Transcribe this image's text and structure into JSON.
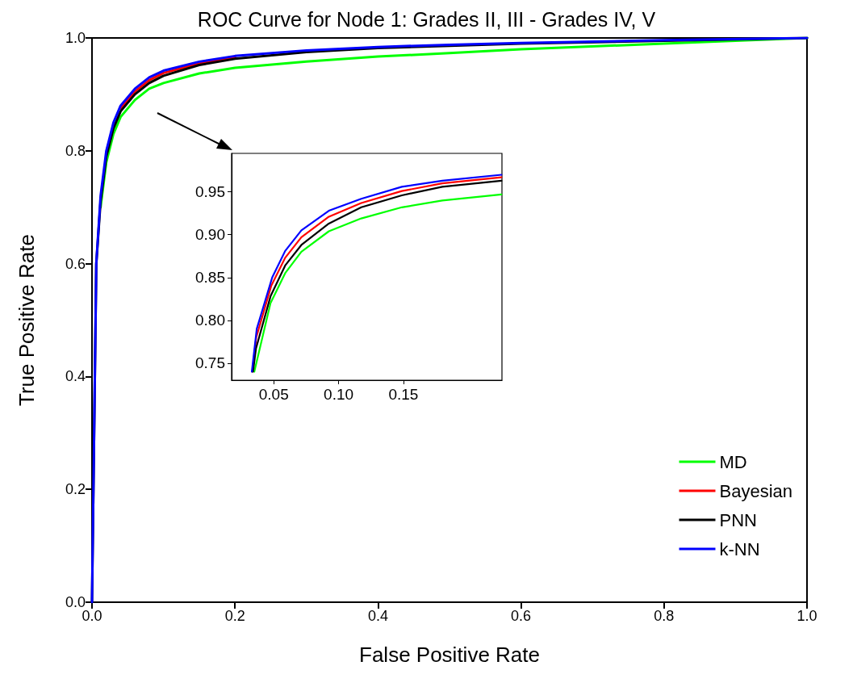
{
  "chart_data": [
    {
      "type": "line",
      "title": "ROC Curve for Node 1: Grades II, III - Grades IV, V",
      "xlabel": "False Positive Rate",
      "ylabel": "True Positive Rate",
      "xlim": [
        0,
        1
      ],
      "ylim": [
        0,
        1
      ],
      "xticks": [
        {
          "value": 0,
          "label": "0.0"
        },
        0.2,
        0.4,
        0.6,
        0.8,
        {
          "value": 1,
          "label": "1.0"
        }
      ],
      "yticks": [
        {
          "value": 0,
          "label": "0.0"
        },
        0.2,
        0.4,
        0.6,
        0.8,
        {
          "value": 1,
          "label": "1.0"
        }
      ],
      "grid": false,
      "legend": "bottom right",
      "marker": "none",
      "line_style": "solid",
      "series": [
        {
          "name": "MD",
          "color": "#00ff00",
          "x": [
            0.012,
            0.02,
            0.03,
            0.04,
            0.06,
            0.08,
            0.1,
            0.15,
            0.2,
            0.3,
            0.4,
            0.5,
            0.6,
            0.8,
            1
          ],
          "values": [
            0.7,
            0.78,
            0.83,
            0.86,
            0.89,
            0.91,
            0.92,
            0.937,
            0.947,
            0.958,
            0.967,
            0.973,
            0.98,
            0.99,
            1
          ]
        },
        {
          "name": "Bayesian",
          "color": "#ff0000",
          "x": [
            0.04,
            0.06,
            0.08,
            0.1,
            0.15,
            0.2
          ],
          "values": [
            0.875,
            0.905,
            0.925,
            0.938,
            0.955,
            0.966
          ]
        },
        {
          "name": "PNN",
          "color": "#000000",
          "x": [
            0,
            0.003,
            0.006,
            0.012,
            0.02,
            0.03,
            0.04,
            0.06,
            0.08,
            0.1,
            0.15,
            0.2,
            0.3,
            0.4,
            0.5,
            0.6,
            0.8,
            1
          ],
          "values": [
            0,
            0.3,
            0.6,
            0.71,
            0.79,
            0.84,
            0.87,
            0.9,
            0.92,
            0.933,
            0.952,
            0.963,
            0.975,
            0.982,
            0.986,
            0.99,
            0.995,
            1
          ]
        },
        {
          "name": "k-NN",
          "color": "#0000ff",
          "x": [
            0,
            0.003,
            0.006,
            0.012,
            0.02,
            0.03,
            0.04,
            0.06,
            0.08,
            0.1,
            0.15,
            0.2,
            0.3,
            0.4,
            0.5,
            0.6,
            0.8,
            1
          ],
          "values": [
            0,
            0.3,
            0.6,
            0.72,
            0.8,
            0.85,
            0.88,
            0.91,
            0.93,
            0.942,
            0.958,
            0.968,
            0.978,
            0.984,
            0.988,
            0.991,
            0.996,
            1
          ]
        }
      ]
    },
    {
      "type": "line",
      "xlim": [
        0.0175,
        0.226
      ],
      "ylim": [
        0.73,
        0.995
      ],
      "xticks": [
        {
          "value": 0.05,
          "label": "0.05"
        },
        {
          "value": 0.1,
          "label": "0.10"
        },
        {
          "value": 0.15,
          "label": "0.15"
        }
      ],
      "yticks": [
        {
          "value": 0.75,
          "label": "0.75"
        },
        {
          "value": 0.8,
          "label": "0.80"
        },
        {
          "value": 0.85,
          "label": "0.85"
        },
        {
          "value": 0.9,
          "label": "0.90"
        },
        {
          "value": 0.95,
          "label": "0.95"
        }
      ],
      "grid": false,
      "legend": false,
      "marker": "none",
      "line_style": "solid",
      "series": [
        {
          "color": "#00ff00",
          "x": [
            0.035,
            0.0475,
            0.0588,
            0.0713,
            0.0925,
            0.1175,
            0.1488,
            0.18,
            0.2256
          ],
          "values": [
            0.74,
            0.82,
            0.855,
            0.88,
            0.904,
            0.919,
            0.932,
            0.94,
            0.947
          ]
        },
        {
          "color": "#ff0000",
          "x": [
            0.0335,
            0.0365,
            0.048,
            0.0588,
            0.0713,
            0.0925,
            0.1175,
            0.1488,
            0.18,
            0.2256
          ],
          "values": [
            0.74,
            0.78,
            0.84,
            0.873,
            0.897,
            0.921,
            0.937,
            0.951,
            0.96,
            0.967
          ]
        },
        {
          "color": "#000000",
          "x": [
            0.034,
            0.0363,
            0.0475,
            0.0588,
            0.0713,
            0.0925,
            0.1175,
            0.1488,
            0.18,
            0.2256
          ],
          "values": [
            0.74,
            0.767,
            0.828,
            0.864,
            0.888,
            0.913,
            0.932,
            0.946,
            0.956,
            0.963
          ]
        },
        {
          "color": "#0000ff",
          "x": [
            0.0331,
            0.0369,
            0.0488,
            0.0588,
            0.0713,
            0.0925,
            0.1175,
            0.1488,
            0.18,
            0.2256
          ],
          "values": [
            0.74,
            0.79,
            0.85,
            0.881,
            0.905,
            0.928,
            0.942,
            0.956,
            0.963,
            0.97
          ]
        }
      ]
    }
  ]
}
